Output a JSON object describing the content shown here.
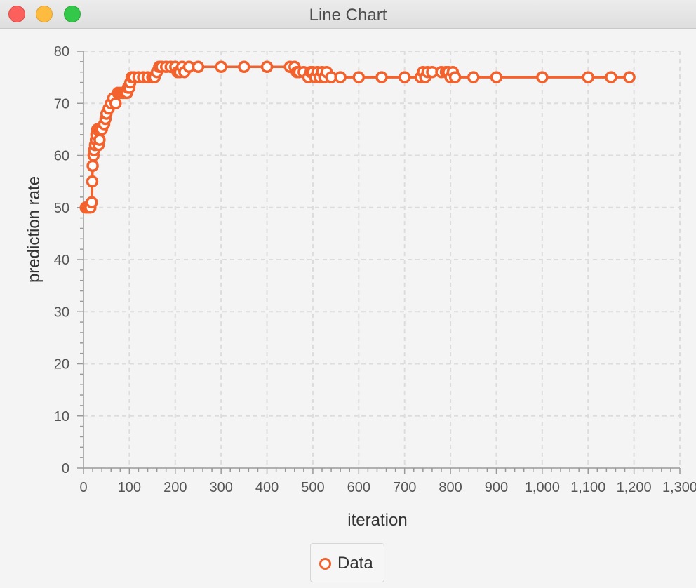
{
  "window": {
    "title": "Line Chart"
  },
  "legend": {
    "label": "Data"
  },
  "colors": {
    "series": "#f3622d",
    "grid": "#dcdcdc",
    "axis": "#999999"
  },
  "chart_data": {
    "type": "line",
    "title": "",
    "xlabel": "iteration",
    "ylabel": "prediction rate",
    "xlim": [
      0,
      1300
    ],
    "ylim": [
      0,
      80
    ],
    "x_ticks": [
      0,
      100,
      200,
      300,
      400,
      500,
      600,
      700,
      800,
      900,
      1000,
      1100,
      1200,
      1300
    ],
    "x_tick_labels": [
      "0",
      "100",
      "200",
      "300",
      "400",
      "500",
      "600",
      "700",
      "800",
      "900",
      "1,000",
      "1,100",
      "1,200",
      "1,300"
    ],
    "y_ticks": [
      0,
      10,
      20,
      30,
      40,
      50,
      60,
      70,
      80
    ],
    "y_tick_labels": [
      "0",
      "10",
      "20",
      "30",
      "40",
      "50",
      "60",
      "70",
      "80"
    ],
    "grid": true,
    "legend_position": "bottom",
    "series": [
      {
        "name": "Data",
        "x": [
          5,
          10,
          15,
          18,
          19,
          20,
          22,
          23,
          25,
          27,
          28,
          30,
          32,
          33,
          35,
          37,
          40,
          45,
          48,
          50,
          55,
          60,
          65,
          70,
          75,
          80,
          85,
          90,
          95,
          97,
          100,
          102,
          105,
          110,
          120,
          130,
          140,
          150,
          155,
          160,
          165,
          170,
          180,
          190,
          200,
          205,
          210,
          215,
          220,
          230,
          250,
          300,
          350,
          400,
          450,
          460,
          465,
          470,
          480,
          490,
          495,
          500,
          505,
          510,
          515,
          520,
          525,
          530,
          540,
          560,
          600,
          650,
          700,
          735,
          740,
          745,
          750,
          760,
          780,
          790,
          795,
          800,
          805,
          810,
          850,
          900,
          1000,
          1100,
          1150,
          1190
        ],
        "y": [
          50,
          50,
          50,
          51,
          55,
          58,
          60,
          61,
          62,
          63,
          64,
          65,
          65,
          62,
          63,
          65,
          65,
          66,
          67,
          68,
          69,
          70,
          71,
          70,
          72,
          72,
          72,
          72,
          72,
          73,
          73,
          74,
          75,
          75,
          75,
          75,
          75,
          75,
          75,
          76,
          77,
          77,
          77,
          77,
          77,
          76,
          76,
          77,
          76,
          77,
          77,
          77,
          77,
          77,
          77,
          77,
          76,
          76,
          76,
          75,
          76,
          76,
          75,
          76,
          75,
          76,
          75,
          76,
          75,
          75,
          75,
          75,
          75,
          75,
          76,
          75,
          76,
          76,
          76,
          76,
          76,
          75,
          76,
          75,
          75,
          75,
          75,
          75,
          75,
          75
        ]
      }
    ]
  }
}
